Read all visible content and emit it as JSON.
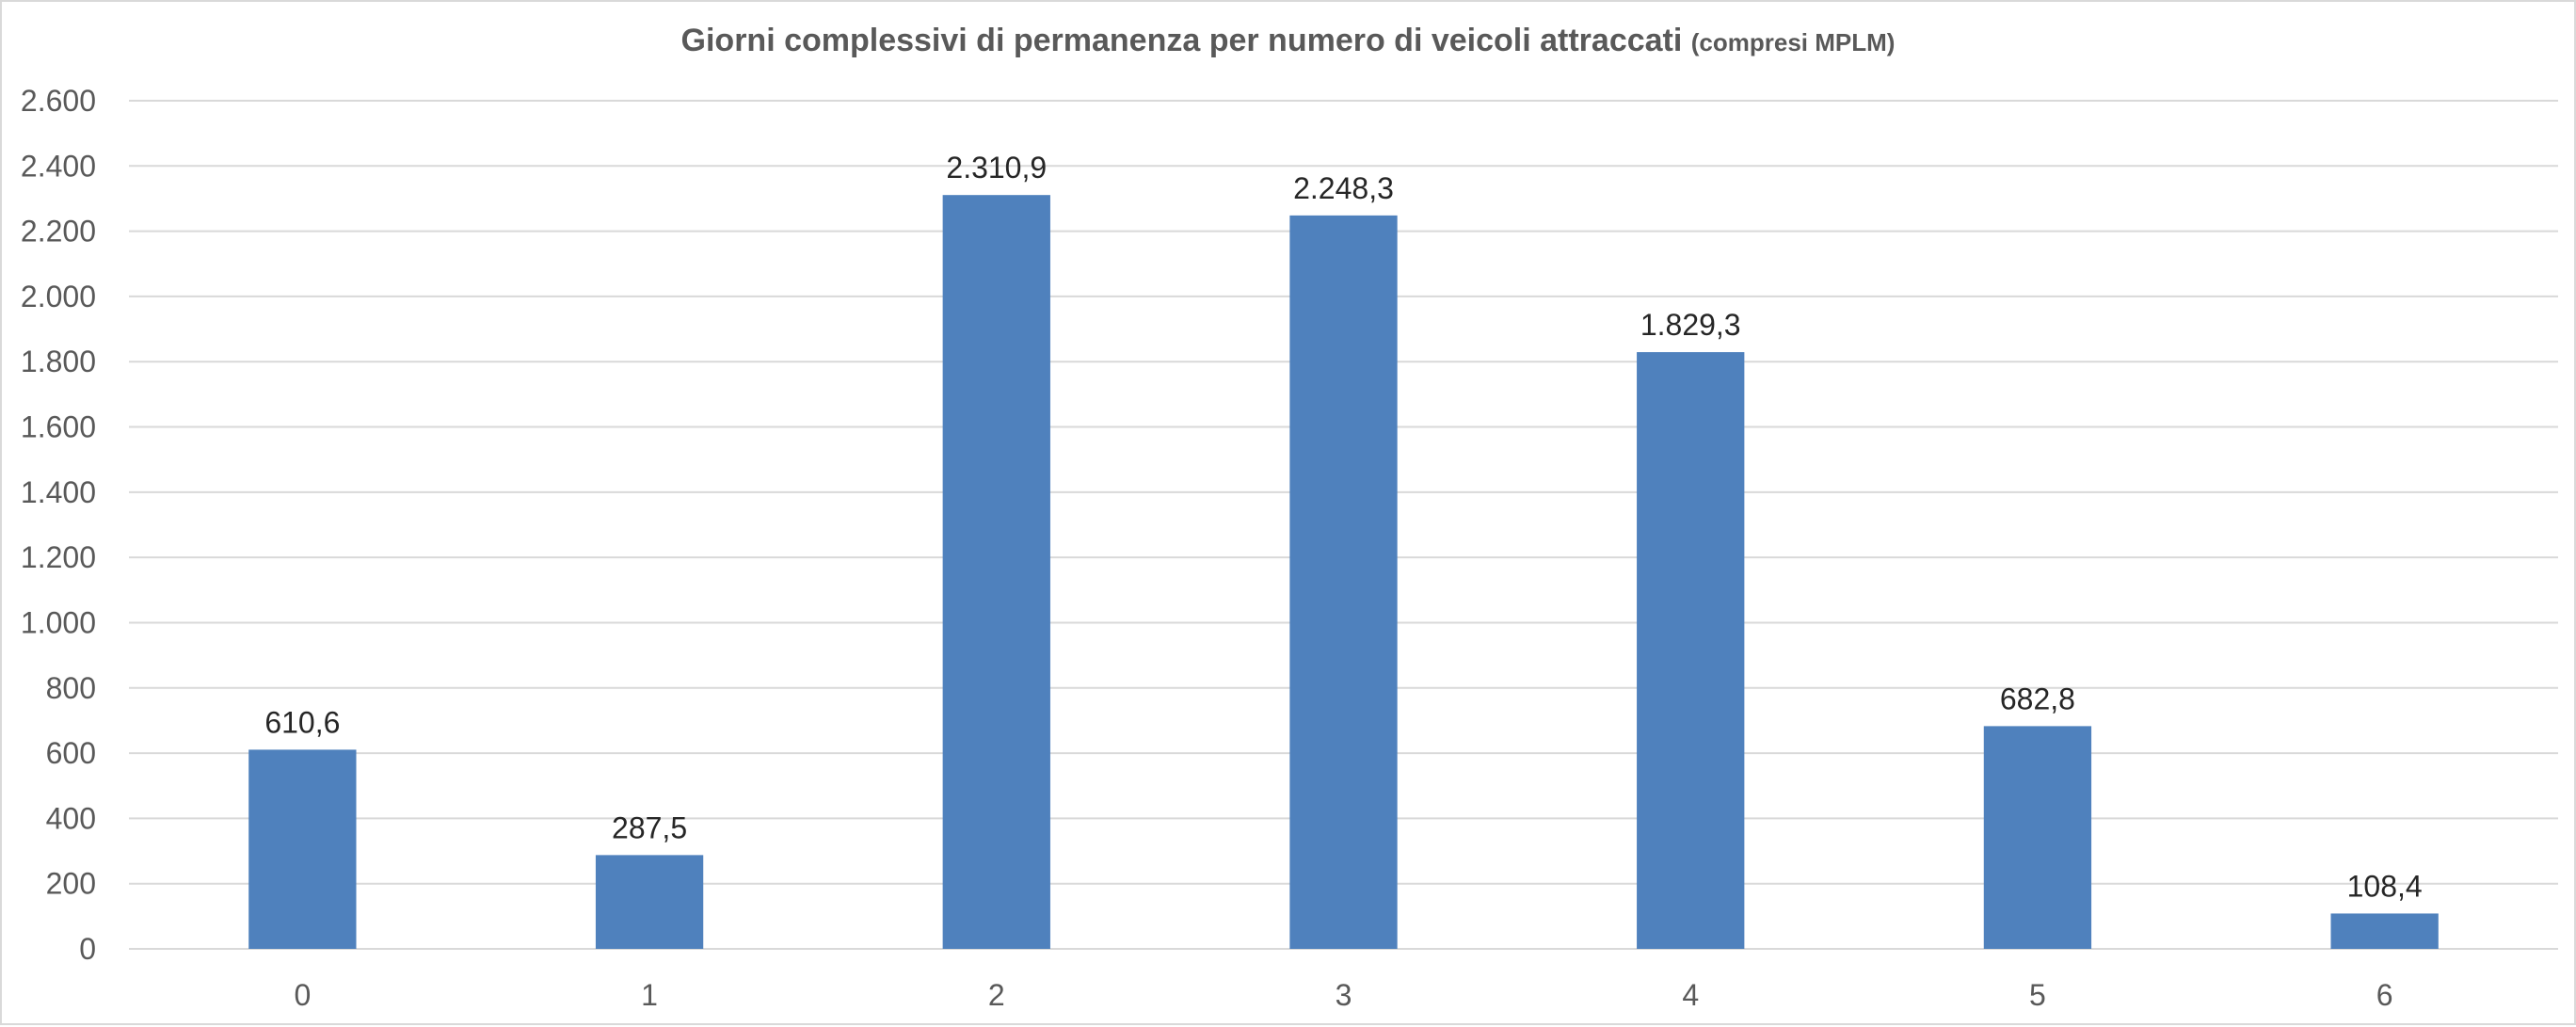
{
  "chart_data": {
    "type": "bar",
    "title": "Giorni complessivi di permanenza per numero di veicoli attraccati",
    "subtitle": "(compresi MPLM)",
    "xlabel": "",
    "ylabel": "",
    "categories": [
      "0",
      "1",
      "2",
      "3",
      "4",
      "5",
      "6"
    ],
    "values": [
      610.6,
      287.5,
      2310.9,
      2248.3,
      1829.3,
      682.8,
      108.4
    ],
    "data_labels": [
      "610,6",
      "287,5",
      "2.310,9",
      "2.248,3",
      "1.829,3",
      "682,8",
      "108,4"
    ],
    "ylim": [
      0,
      2600
    ],
    "y_ticks": [
      0,
      200,
      400,
      600,
      800,
      1000,
      1200,
      1400,
      1600,
      1800,
      2000,
      2200,
      2400,
      2600
    ],
    "y_tick_labels": [
      "0",
      "200",
      "400",
      "600",
      "800",
      "1.000",
      "1.200",
      "1.400",
      "1.600",
      "1.800",
      "2.000",
      "2.200",
      "2.400",
      "2.600"
    ],
    "grid": true,
    "legend": "none",
    "bar_color": "#4f81bd",
    "grid_color": "#d9d9d9",
    "text_color": "#595959"
  }
}
